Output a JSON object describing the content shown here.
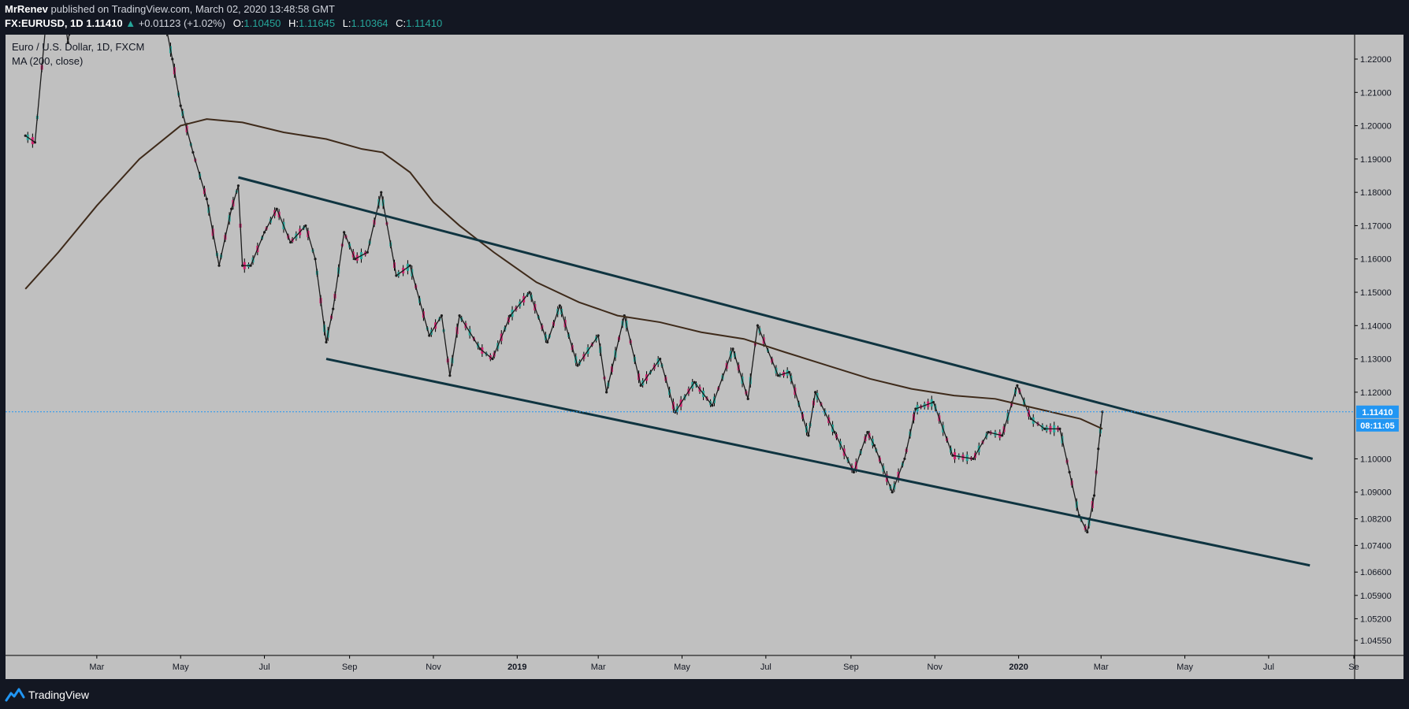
{
  "header": {
    "publisher": "MrRenev",
    "published_text": "published on TradingView.com, March 02, 2020 13:48:58 GMT",
    "symbol": "FX:EURUSD, 1D",
    "last": "1.11410",
    "change_arrow": "▲",
    "change": "+0.01123 (+1.02%)",
    "o_label": "O:",
    "o": "1.10450",
    "h_label": "H:",
    "h": "1.11645",
    "l_label": "L:",
    "l": "1.10364",
    "c_label": "C:",
    "c": "1.11410"
  },
  "legend": {
    "title": "Euro / U.S. Dollar, 1D, FXCM",
    "indicator": "MA (200, close)"
  },
  "price_axis": {
    "last_price_label": "1.11410",
    "countdown_label": "08:11:05"
  },
  "footer": {
    "brand": "TradingView"
  },
  "colors": {
    "background": "#131722",
    "plot_background": "#c0c0c0",
    "up_candle": "#26a69a",
    "down_candle": "#d0216e",
    "candle_wick": "#000000",
    "ma_line": "#3e2a1a",
    "channel_line": "#0f3440",
    "last_price": "#2196f3"
  },
  "chart_data": {
    "type": "line",
    "title": "Euro / U.S. Dollar, 1D, FXCM",
    "price_type": "candlestick (approximated by daily close)",
    "y_ticks": [
      1.22,
      1.21,
      1.2,
      1.19,
      1.18,
      1.17,
      1.16,
      1.15,
      1.14,
      1.13,
      1.12,
      1.1,
      1.09,
      1.082,
      1.074,
      1.066,
      1.059,
      1.052,
      1.0455
    ],
    "y_tick_labels": [
      "1.22000",
      "1.21000",
      "1.20000",
      "1.19000",
      "1.18000",
      "1.17000",
      "1.16000",
      "1.15000",
      "1.14000",
      "1.13000",
      "1.12000",
      "1.10000",
      "1.09000",
      "1.08200",
      "1.07400",
      "1.06600",
      "1.05900",
      "1.05200",
      "1.04550"
    ],
    "x_ticks": [
      {
        "label": "Mar",
        "date": "2018-03-01"
      },
      {
        "label": "May",
        "date": "2018-05-01"
      },
      {
        "label": "Jul",
        "date": "2018-07-01"
      },
      {
        "label": "Sep",
        "date": "2018-09-01"
      },
      {
        "label": "Nov",
        "date": "2018-11-01"
      },
      {
        "label": "2019",
        "date": "2019-01-01",
        "bold": true
      },
      {
        "label": "Mar",
        "date": "2019-03-01"
      },
      {
        "label": "May",
        "date": "2019-05-01"
      },
      {
        "label": "Jul",
        "date": "2019-07-01"
      },
      {
        "label": "Sep",
        "date": "2019-09-01"
      },
      {
        "label": "Nov",
        "date": "2019-11-01"
      },
      {
        "label": "2020",
        "date": "2020-01-01",
        "bold": true
      },
      {
        "label": "Mar",
        "date": "2020-03-01"
      },
      {
        "label": "May",
        "date": "2020-05-01"
      },
      {
        "label": "Jul",
        "date": "2020-07-01"
      },
      {
        "label": "Se",
        "date": "2020-09-01"
      }
    ],
    "series": [
      {
        "name": "EUR/USD",
        "points": [
          [
            "2018-01-08",
            1.197
          ],
          [
            "2018-01-15",
            1.195
          ],
          [
            "2018-01-25",
            1.24
          ],
          [
            "2018-02-01",
            1.245
          ],
          [
            "2018-02-08",
            1.225
          ],
          [
            "2018-02-16",
            1.25
          ],
          [
            "2018-03-01",
            1.23
          ],
          [
            "2018-03-08",
            1.235
          ],
          [
            "2018-03-20",
            1.228
          ],
          [
            "2018-04-01",
            1.232
          ],
          [
            "2018-04-17",
            1.237
          ],
          [
            "2018-04-25",
            1.22
          ],
          [
            "2018-05-01",
            1.206
          ],
          [
            "2018-05-10",
            1.192
          ],
          [
            "2018-05-20",
            1.178
          ],
          [
            "2018-05-29",
            1.158
          ],
          [
            "2018-06-07",
            1.175
          ],
          [
            "2018-06-12",
            1.182
          ],
          [
            "2018-06-15",
            1.158
          ],
          [
            "2018-06-21",
            1.158
          ],
          [
            "2018-07-01",
            1.168
          ],
          [
            "2018-07-10",
            1.175
          ],
          [
            "2018-07-20",
            1.165
          ],
          [
            "2018-07-31",
            1.17
          ],
          [
            "2018-08-07",
            1.16
          ],
          [
            "2018-08-15",
            1.135
          ],
          [
            "2018-08-20",
            1.145
          ],
          [
            "2018-08-28",
            1.168
          ],
          [
            "2018-09-05",
            1.16
          ],
          [
            "2018-09-14",
            1.162
          ],
          [
            "2018-09-24",
            1.18
          ],
          [
            "2018-10-05",
            1.155
          ],
          [
            "2018-10-15",
            1.158
          ],
          [
            "2018-10-29",
            1.137
          ],
          [
            "2018-11-07",
            1.143
          ],
          [
            "2018-11-13",
            1.125
          ],
          [
            "2018-11-20",
            1.143
          ],
          [
            "2018-12-05",
            1.133
          ],
          [
            "2018-12-14",
            1.13
          ],
          [
            "2018-12-27",
            1.143
          ],
          [
            "2019-01-10",
            1.15
          ],
          [
            "2019-01-23",
            1.135
          ],
          [
            "2019-02-01",
            1.146
          ],
          [
            "2019-02-14",
            1.128
          ],
          [
            "2019-03-01",
            1.137
          ],
          [
            "2019-03-07",
            1.12
          ],
          [
            "2019-03-20",
            1.143
          ],
          [
            "2019-04-01",
            1.122
          ],
          [
            "2019-04-15",
            1.13
          ],
          [
            "2019-04-26",
            1.114
          ],
          [
            "2019-05-10",
            1.123
          ],
          [
            "2019-05-23",
            1.116
          ],
          [
            "2019-06-07",
            1.133
          ],
          [
            "2019-06-18",
            1.118
          ],
          [
            "2019-06-25",
            1.14
          ],
          [
            "2019-07-10",
            1.125
          ],
          [
            "2019-07-18",
            1.126
          ],
          [
            "2019-08-01",
            1.107
          ],
          [
            "2019-08-06",
            1.12
          ],
          [
            "2019-08-20",
            1.108
          ],
          [
            "2019-09-03",
            1.096
          ],
          [
            "2019-09-13",
            1.108
          ],
          [
            "2019-09-18",
            1.104
          ],
          [
            "2019-10-01",
            1.09
          ],
          [
            "2019-10-10",
            1.1
          ],
          [
            "2019-10-18",
            1.115
          ],
          [
            "2019-10-31",
            1.117
          ],
          [
            "2019-11-14",
            1.101
          ],
          [
            "2019-11-29",
            1.1
          ],
          [
            "2019-12-10",
            1.108
          ],
          [
            "2019-12-20",
            1.107
          ],
          [
            "2019-12-31",
            1.122
          ],
          [
            "2020-01-10",
            1.112
          ],
          [
            "2020-01-20",
            1.109
          ],
          [
            "2020-01-31",
            1.109
          ],
          [
            "2020-02-07",
            1.096
          ],
          [
            "2020-02-14",
            1.083
          ],
          [
            "2020-02-20",
            1.078
          ],
          [
            "2020-02-25",
            1.089
          ],
          [
            "2020-02-28",
            1.103
          ],
          [
            "2020-03-02",
            1.1141
          ]
        ]
      },
      {
        "name": "MA (200, close)",
        "points": [
          [
            "2018-01-08",
            1.151
          ],
          [
            "2018-02-01",
            1.162
          ],
          [
            "2018-03-01",
            1.176
          ],
          [
            "2018-04-01",
            1.19
          ],
          [
            "2018-05-01",
            1.2
          ],
          [
            "2018-05-20",
            1.202
          ],
          [
            "2018-06-15",
            1.201
          ],
          [
            "2018-07-15",
            1.198
          ],
          [
            "2018-08-15",
            1.196
          ],
          [
            "2018-09-10",
            1.193
          ],
          [
            "2018-09-25",
            1.192
          ],
          [
            "2018-10-15",
            1.186
          ],
          [
            "2018-11-01",
            1.177
          ],
          [
            "2018-11-20",
            1.17
          ],
          [
            "2018-12-15",
            1.162
          ],
          [
            "2019-01-15",
            1.153
          ],
          [
            "2019-02-15",
            1.147
          ],
          [
            "2019-03-15",
            1.143
          ],
          [
            "2019-04-15",
            1.141
          ],
          [
            "2019-05-15",
            1.138
          ],
          [
            "2019-06-15",
            1.136
          ],
          [
            "2019-07-15",
            1.132
          ],
          [
            "2019-08-15",
            1.128
          ],
          [
            "2019-09-15",
            1.124
          ],
          [
            "2019-10-15",
            1.121
          ],
          [
            "2019-11-15",
            1.119
          ],
          [
            "2019-12-15",
            1.118
          ],
          [
            "2020-01-15",
            1.115
          ],
          [
            "2020-02-15",
            1.112
          ],
          [
            "2020-03-02",
            1.109
          ]
        ]
      }
    ],
    "annotations": {
      "channel_upper": [
        [
          "2018-06-12",
          1.1845
        ],
        [
          "2020-08-02",
          1.1
        ]
      ],
      "channel_lower": [
        [
          "2018-08-15",
          1.13
        ],
        [
          "2020-07-31",
          1.068
        ]
      ],
      "last_price_line": 1.1141
    }
  }
}
